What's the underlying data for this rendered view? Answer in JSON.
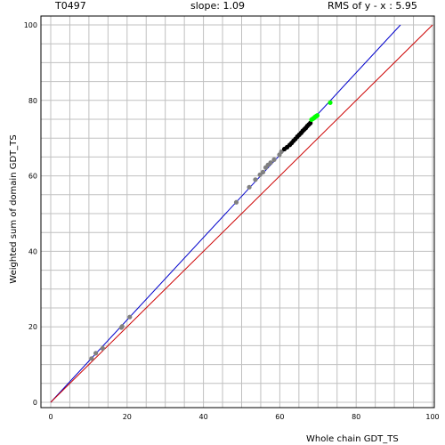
{
  "header": {
    "target_id": "T0497",
    "slope_text": "slope: 1.09",
    "rms_text": "RMS of  y - x : 5.95"
  },
  "chart_data": {
    "type": "scatter",
    "xlabel": "Whole chain GDT_TS",
    "ylabel": "Weighted sum of domain GDT_TS",
    "xlim": [
      0,
      100
    ],
    "ylim": [
      0,
      100
    ],
    "x_ticks": [
      0,
      20,
      40,
      60,
      80,
      100
    ],
    "y_ticks": [
      0,
      20,
      40,
      60,
      80,
      100
    ],
    "grid": true,
    "colors": {
      "gray": "#808080",
      "black": "#000000",
      "green": "#00ff00",
      "fit_line": "#0000cc",
      "identity_line": "#cc0000",
      "grid": "#c0c0c0"
    },
    "lines": [
      {
        "kind": "fit",
        "x": [
          0,
          91.6
        ],
        "y": [
          0,
          100
        ]
      },
      {
        "kind": "identity",
        "x": [
          0,
          100
        ],
        "y": [
          0,
          100
        ]
      }
    ],
    "series": [
      {
        "color": "gray",
        "points": [
          [
            10.7,
            11.6
          ],
          [
            11.8,
            13
          ],
          [
            13.6,
            14.3
          ],
          [
            18.5,
            19.8
          ],
          [
            18.7,
            20.1
          ],
          [
            20.7,
            22.6
          ],
          [
            48.6,
            53
          ],
          [
            52,
            57
          ],
          [
            53.6,
            59
          ],
          [
            54.8,
            60.3
          ],
          [
            55.6,
            61
          ],
          [
            56.3,
            62.2
          ],
          [
            56.9,
            62.9
          ],
          [
            57.6,
            63.5
          ],
          [
            58.5,
            64.3
          ],
          [
            59.9,
            65.6
          ],
          [
            60.4,
            66.4
          ]
        ]
      },
      {
        "color": "black",
        "points": [
          [
            61.2,
            67.1
          ],
          [
            61.9,
            67.6
          ],
          [
            62.6,
            68.2
          ],
          [
            63.1,
            68.7
          ],
          [
            63.6,
            69.3
          ],
          [
            64.1,
            69.8
          ],
          [
            64.6,
            70.4
          ],
          [
            65.1,
            70.9
          ],
          [
            65.6,
            71.4
          ],
          [
            66,
            71.9
          ],
          [
            66.4,
            72.3
          ],
          [
            66.8,
            72.7
          ],
          [
            67.2,
            73.2
          ],
          [
            67.6,
            73.6
          ],
          [
            68,
            74
          ]
        ]
      },
      {
        "color": "green",
        "points": [
          [
            68.3,
            74.9
          ],
          [
            68.6,
            75.1
          ],
          [
            68.9,
            75.3
          ],
          [
            69.2,
            75.6
          ],
          [
            69.5,
            75.8
          ],
          [
            69.8,
            76
          ],
          [
            73.2,
            79.4
          ]
        ]
      }
    ]
  }
}
